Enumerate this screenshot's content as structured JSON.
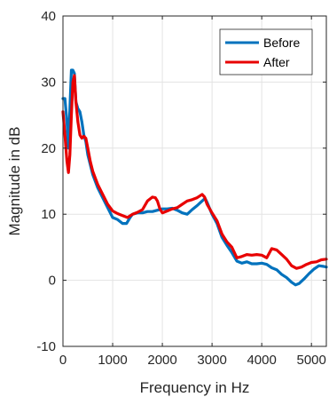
{
  "chart_data": {
    "type": "line",
    "title": "",
    "xlabel": "Frequency in Hz",
    "ylabel": "Magnitude in dB",
    "xlim": [
      0,
      5300
    ],
    "ylim": [
      -10,
      40
    ],
    "xticks": [
      0,
      1000,
      2000,
      3000,
      4000,
      5000
    ],
    "yticks": [
      -10,
      0,
      10,
      20,
      30,
      40
    ],
    "xtick_labels": [
      "0",
      "1000",
      "2000",
      "3000",
      "4000",
      "5000"
    ],
    "ytick_labels": [
      "-10",
      "0",
      "10",
      "20",
      "30",
      "40"
    ],
    "grid": true,
    "legend": {
      "position": "top-right"
    },
    "series": [
      {
        "name": "Before",
        "color": "#0072BD",
        "points": [
          [
            0,
            27.5
          ],
          [
            40,
            27.5
          ],
          [
            80,
            24
          ],
          [
            110,
            20
          ],
          [
            140,
            26
          ],
          [
            170,
            31.8
          ],
          [
            200,
            31.8
          ],
          [
            230,
            31.3
          ],
          [
            260,
            27
          ],
          [
            300,
            26
          ],
          [
            340,
            25.5
          ],
          [
            380,
            24
          ],
          [
            420,
            22
          ],
          [
            460,
            21
          ],
          [
            500,
            19
          ],
          [
            550,
            17.5
          ],
          [
            600,
            16
          ],
          [
            650,
            15
          ],
          [
            700,
            14
          ],
          [
            800,
            12.5
          ],
          [
            900,
            11
          ],
          [
            1000,
            9.5
          ],
          [
            1100,
            9.2
          ],
          [
            1200,
            8.6
          ],
          [
            1280,
            8.6
          ],
          [
            1350,
            9.5
          ],
          [
            1400,
            10
          ],
          [
            1500,
            10.2
          ],
          [
            1600,
            10.2
          ],
          [
            1700,
            10.4
          ],
          [
            1800,
            10.4
          ],
          [
            1900,
            10.6
          ],
          [
            2000,
            10.8
          ],
          [
            2100,
            10.8
          ],
          [
            2200,
            10.9
          ],
          [
            2300,
            10.6
          ],
          [
            2400,
            10.2
          ],
          [
            2500,
            10.0
          ],
          [
            2600,
            10.7
          ],
          [
            2700,
            11.3
          ],
          [
            2800,
            12
          ],
          [
            2860,
            12.4
          ],
          [
            2900,
            11.8
          ],
          [
            3000,
            10
          ],
          [
            3100,
            8.6
          ],
          [
            3200,
            6.5
          ],
          [
            3300,
            5.3
          ],
          [
            3400,
            4.2
          ],
          [
            3500,
            2.9
          ],
          [
            3600,
            2.6
          ],
          [
            3700,
            2.8
          ],
          [
            3800,
            2.5
          ],
          [
            3900,
            2.5
          ],
          [
            4000,
            2.6
          ],
          [
            4100,
            2.4
          ],
          [
            4200,
            1.9
          ],
          [
            4300,
            1.6
          ],
          [
            4400,
            0.9
          ],
          [
            4500,
            0.4
          ],
          [
            4600,
            -0.3
          ],
          [
            4680,
            -0.7
          ],
          [
            4750,
            -0.5
          ],
          [
            4850,
            0.2
          ],
          [
            4950,
            1.0
          ],
          [
            5050,
            1.7
          ],
          [
            5150,
            2.2
          ],
          [
            5250,
            2.1
          ],
          [
            5300,
            2.0
          ]
        ]
      },
      {
        "name": "After",
        "color": "#E80000",
        "points": [
          [
            0,
            25.5
          ],
          [
            40,
            22
          ],
          [
            80,
            18
          ],
          [
            110,
            16.3
          ],
          [
            140,
            19
          ],
          [
            170,
            25
          ],
          [
            200,
            30
          ],
          [
            230,
            31
          ],
          [
            260,
            27
          ],
          [
            300,
            24
          ],
          [
            340,
            22
          ],
          [
            380,
            21.5
          ],
          [
            420,
            21.8
          ],
          [
            460,
            21.5
          ],
          [
            500,
            20
          ],
          [
            550,
            18
          ],
          [
            600,
            16.5
          ],
          [
            650,
            15.5
          ],
          [
            700,
            14.5
          ],
          [
            800,
            13
          ],
          [
            900,
            11.5
          ],
          [
            1000,
            10.5
          ],
          [
            1100,
            10.1
          ],
          [
            1200,
            9.8
          ],
          [
            1300,
            9.5
          ],
          [
            1400,
            10
          ],
          [
            1500,
            10.3
          ],
          [
            1600,
            10.7
          ],
          [
            1700,
            12
          ],
          [
            1800,
            12.6
          ],
          [
            1860,
            12.5
          ],
          [
            1900,
            12
          ],
          [
            1950,
            10.8
          ],
          [
            2000,
            10.2
          ],
          [
            2100,
            10.5
          ],
          [
            2200,
            10.8
          ],
          [
            2300,
            11
          ],
          [
            2400,
            11.5
          ],
          [
            2500,
            12
          ],
          [
            2600,
            12.2
          ],
          [
            2700,
            12.5
          ],
          [
            2800,
            13
          ],
          [
            2850,
            12.6
          ],
          [
            2900,
            11.5
          ],
          [
            3000,
            10.2
          ],
          [
            3100,
            9
          ],
          [
            3200,
            7
          ],
          [
            3300,
            5.8
          ],
          [
            3400,
            5.0
          ],
          [
            3500,
            3.4
          ],
          [
            3600,
            3.6
          ],
          [
            3700,
            3.9
          ],
          [
            3800,
            3.8
          ],
          [
            3900,
            3.9
          ],
          [
            4000,
            3.8
          ],
          [
            4100,
            3.4
          ],
          [
            4200,
            4.8
          ],
          [
            4300,
            4.6
          ],
          [
            4400,
            3.9
          ],
          [
            4500,
            3.2
          ],
          [
            4600,
            2.2
          ],
          [
            4700,
            1.8
          ],
          [
            4800,
            2.0
          ],
          [
            4900,
            2.4
          ],
          [
            5000,
            2.7
          ],
          [
            5100,
            2.8
          ],
          [
            5200,
            3.1
          ],
          [
            5300,
            3.2
          ]
        ]
      }
    ]
  }
}
